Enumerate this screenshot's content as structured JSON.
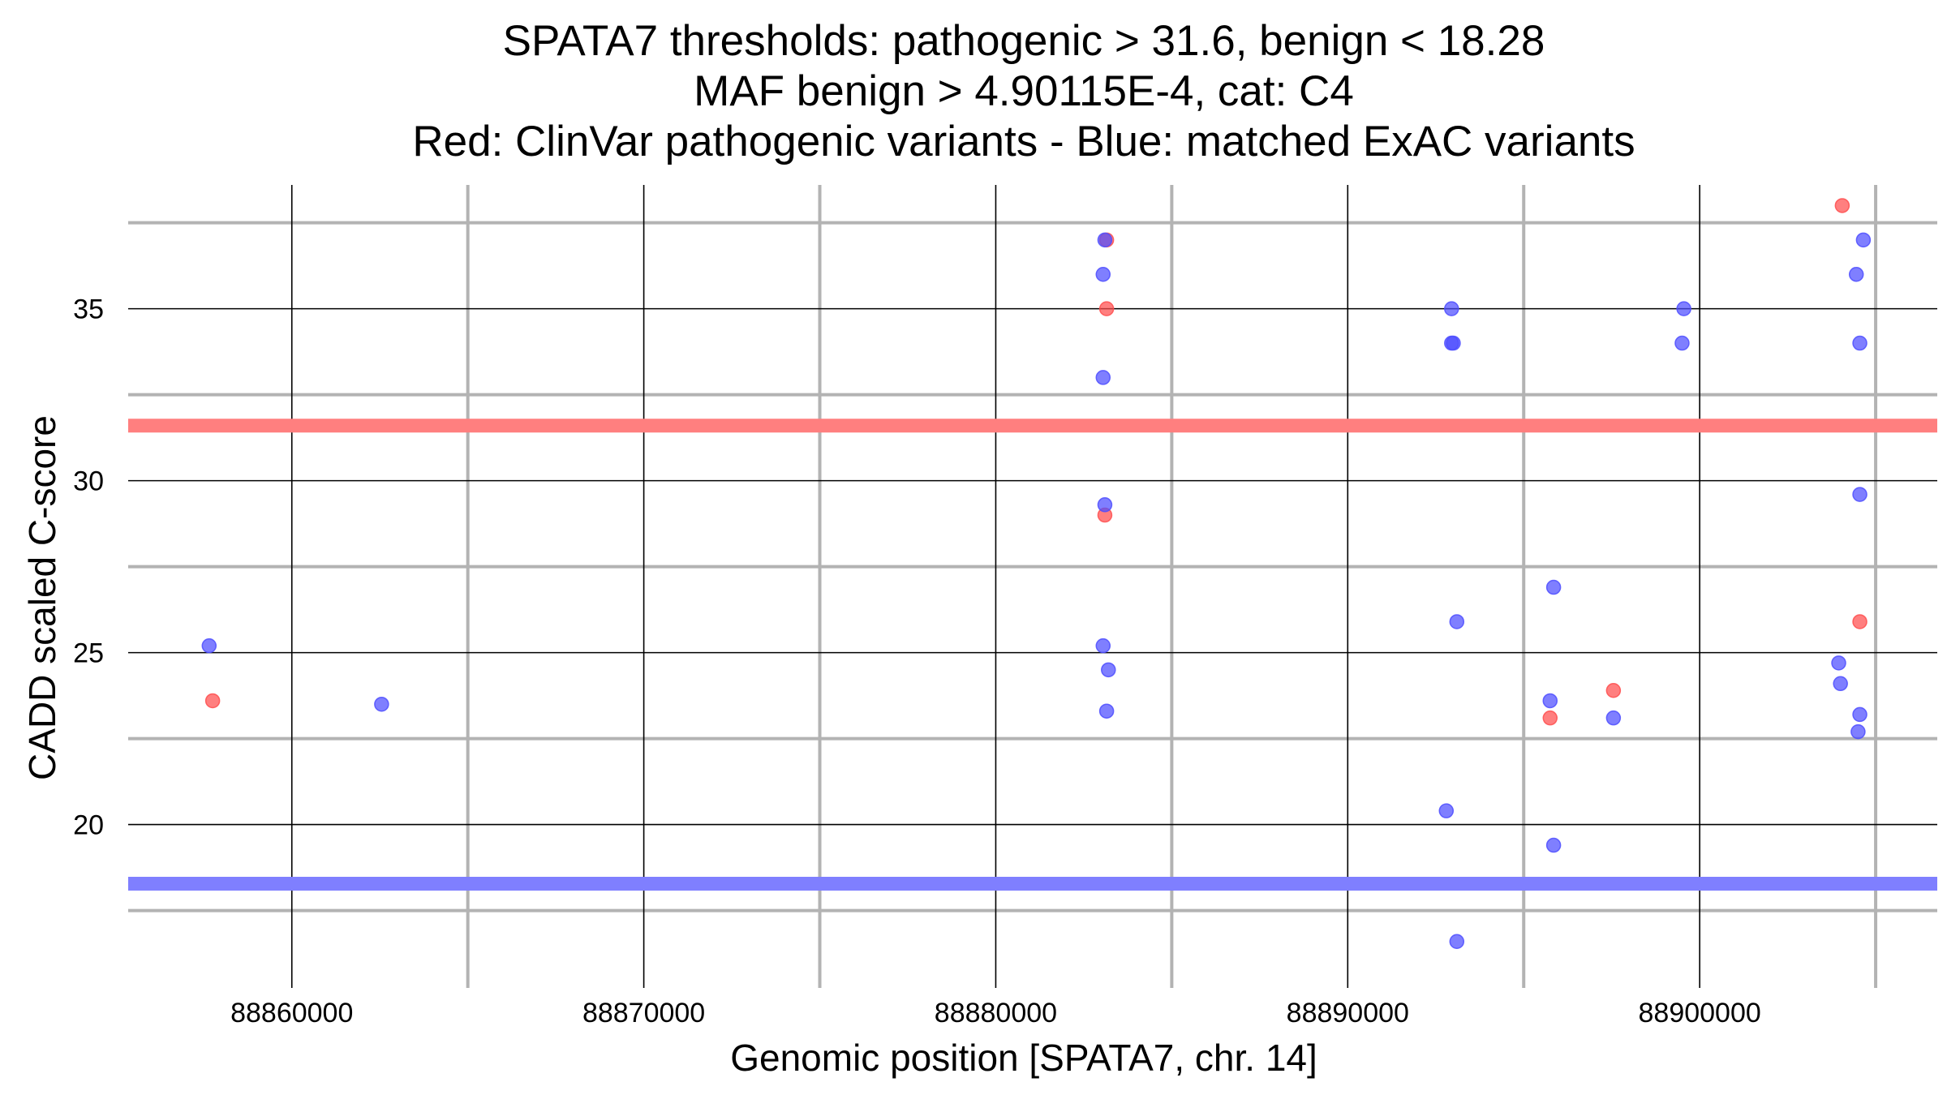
{
  "chart_data": {
    "type": "scatter",
    "title_lines": [
      "SPATA7 thresholds: pathogenic > 31.6, benign < 18.28",
      "MAF benign > 4.90115E-4, cat: C4",
      "Red: ClinVar pathogenic variants - Blue: matched ExAC variants"
    ],
    "xlabel": "Genomic position [SPATA7, chr. 14]",
    "ylabel": "CADD scaled C-score",
    "xlim": [
      88855350,
      88906750
    ],
    "ylim": [
      15.25,
      38.6
    ],
    "x_major_ticks": [
      88860000,
      88870000,
      88880000,
      88890000,
      88900000
    ],
    "x_tick_labels": [
      "88860000",
      "88870000",
      "88880000",
      "88890000",
      "88900000"
    ],
    "x_minor_ticks": [
      88865000,
      88875000,
      88885000,
      88895000,
      88905000
    ],
    "y_major_ticks": [
      20,
      25,
      30,
      35
    ],
    "y_tick_labels": [
      "20",
      "25",
      "30",
      "35"
    ],
    "y_minor_ticks": [
      17.5,
      22.5,
      27.5,
      32.5,
      37.5
    ],
    "grid": true,
    "thresholds": [
      {
        "name": "pathogenic",
        "value": 31.6,
        "color": "#ff7f7f"
      },
      {
        "name": "benign",
        "value": 18.28,
        "color": "#7f7fff"
      }
    ],
    "series": [
      {
        "color": "#ff4d4d",
        "points": [
          {
            "x": 88857750,
            "y": 23.6
          },
          {
            "x": 88883150,
            "y": 37.0
          },
          {
            "x": 88883150,
            "y": 35.0
          },
          {
            "x": 88883100,
            "y": 29.0
          },
          {
            "x": 88895750,
            "y": 23.1
          },
          {
            "x": 88897550,
            "y": 23.9
          },
          {
            "x": 88904050,
            "y": 38.0
          },
          {
            "x": 88904550,
            "y": 25.9
          }
        ]
      },
      {
        "color": "#4d4dff",
        "points": [
          {
            "x": 88857650,
            "y": 25.2
          },
          {
            "x": 88862550,
            "y": 23.5
          },
          {
            "x": 88883100,
            "y": 37.0
          },
          {
            "x": 88883050,
            "y": 36.0
          },
          {
            "x": 88883050,
            "y": 33.0
          },
          {
            "x": 88883100,
            "y": 29.3
          },
          {
            "x": 88883050,
            "y": 25.2
          },
          {
            "x": 88883200,
            "y": 24.5
          },
          {
            "x": 88883150,
            "y": 23.3
          },
          {
            "x": 88892950,
            "y": 35.0
          },
          {
            "x": 88892950,
            "y": 34.0
          },
          {
            "x": 88893000,
            "y": 34.0
          },
          {
            "x": 88893100,
            "y": 25.9
          },
          {
            "x": 88892800,
            "y": 20.4
          },
          {
            "x": 88893100,
            "y": 16.6
          },
          {
            "x": 88895850,
            "y": 26.9
          },
          {
            "x": 88895750,
            "y": 23.6
          },
          {
            "x": 88895850,
            "y": 19.4
          },
          {
            "x": 88897550,
            "y": 23.1
          },
          {
            "x": 88899550,
            "y": 35.0
          },
          {
            "x": 88899500,
            "y": 34.0
          },
          {
            "x": 88904650,
            "y": 37.0
          },
          {
            "x": 88904450,
            "y": 36.0
          },
          {
            "x": 88904550,
            "y": 34.0
          },
          {
            "x": 88904550,
            "y": 29.6
          },
          {
            "x": 88903950,
            "y": 24.7
          },
          {
            "x": 88904000,
            "y": 24.1
          },
          {
            "x": 88904550,
            "y": 23.2
          },
          {
            "x": 88904500,
            "y": 22.7
          }
        ]
      }
    ]
  }
}
